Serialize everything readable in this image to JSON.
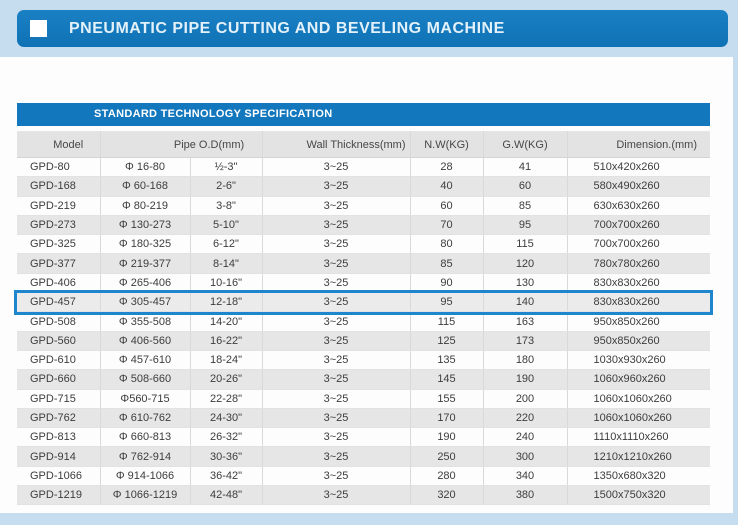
{
  "page": {
    "title": "PNEUMATIC PIPE CUTTING AND BEVELING MACHINE",
    "title_bullet_icon": "white-square",
    "section_title": "STANDARD TECHNOLOGY SPECIFICATION"
  },
  "colors": {
    "primary_blue": "#1377bd",
    "page_background": "#c6ddf0",
    "panel_background": "#fdfdfd",
    "alt_row_gray": "#e6e6e6",
    "header_row_gray": "#e3e3e3",
    "highlight_border_blue": "#1e86cd",
    "text_gray": "#3d3d3d"
  },
  "table": {
    "columns": [
      "Model",
      "Pipe O.D(mm)",
      "Wall Thickness(mm)",
      "N.W(KG)",
      "G.W(KG)",
      "Dimension.(mm)"
    ],
    "pipe_od_colspan": 2,
    "highlighted_row_index": 7,
    "highlighted_model": "GPD-457",
    "rows": [
      [
        "GPD-80",
        "Φ 16-80",
        "½-3\"",
        "3~25",
        "28",
        "41",
        "510x420x260"
      ],
      [
        "GPD-168",
        "Φ 60-168",
        "2-6\"",
        "3~25",
        "40",
        "60",
        "580x490x260"
      ],
      [
        "GPD-219",
        "Φ 80-219",
        "3-8\"",
        "3~25",
        "60",
        "85",
        "630x630x260"
      ],
      [
        "GPD-273",
        "Φ 130-273",
        "5-10\"",
        "3~25",
        "70",
        "95",
        "700x700x260"
      ],
      [
        "GPD-325",
        "Φ 180-325",
        "6-12\"",
        "3~25",
        "80",
        "115",
        "700x700x260"
      ],
      [
        "GPD-377",
        "Φ 219-377",
        "8-14\"",
        "3~25",
        "85",
        "120",
        "780x780x260"
      ],
      [
        "GPD-406",
        "Φ 265-406",
        "10-16\"",
        "3~25",
        "90",
        "130",
        "830x830x260"
      ],
      [
        "GPD-457",
        "Φ 305-457",
        "12-18\"",
        "3~25",
        "95",
        "140",
        "830x830x260"
      ],
      [
        "GPD-508",
        "Φ 355-508",
        "14-20\"",
        "3~25",
        "115",
        "163",
        "950x850x260"
      ],
      [
        "GPD-560",
        "Φ 406-560",
        "16-22\"",
        "3~25",
        "125",
        "173",
        "950x850x260"
      ],
      [
        "GPD-610",
        "Φ 457-610",
        "18-24\"",
        "3~25",
        "135",
        "180",
        "1030x930x260"
      ],
      [
        "GPD-660",
        "Φ 508-660",
        "20-26\"",
        "3~25",
        "145",
        "190",
        "1060x960x260"
      ],
      [
        "GPD-715",
        "Φ560-715",
        "22-28\"",
        "3~25",
        "155",
        "200",
        "1060x1060x260"
      ],
      [
        "GPD-762",
        "Φ 610-762",
        "24-30\"",
        "3~25",
        "170",
        "220",
        "1060x1060x260"
      ],
      [
        "GPD-813",
        "Φ 660-813",
        "26-32\"",
        "3~25",
        "190",
        "240",
        "1110x1110x260"
      ],
      [
        "GPD-914",
        "Φ 762-914",
        "30-36\"",
        "3~25",
        "250",
        "300",
        "1210x1210x260"
      ],
      [
        "GPD-1066",
        "Φ 914-1066",
        "36-42\"",
        "3~25",
        "280",
        "340",
        "1350x680x320"
      ],
      [
        "GPD-1219",
        "Φ 1066-1219",
        "42-48\"",
        "3~25",
        "320",
        "380",
        "1500x750x320"
      ]
    ]
  }
}
